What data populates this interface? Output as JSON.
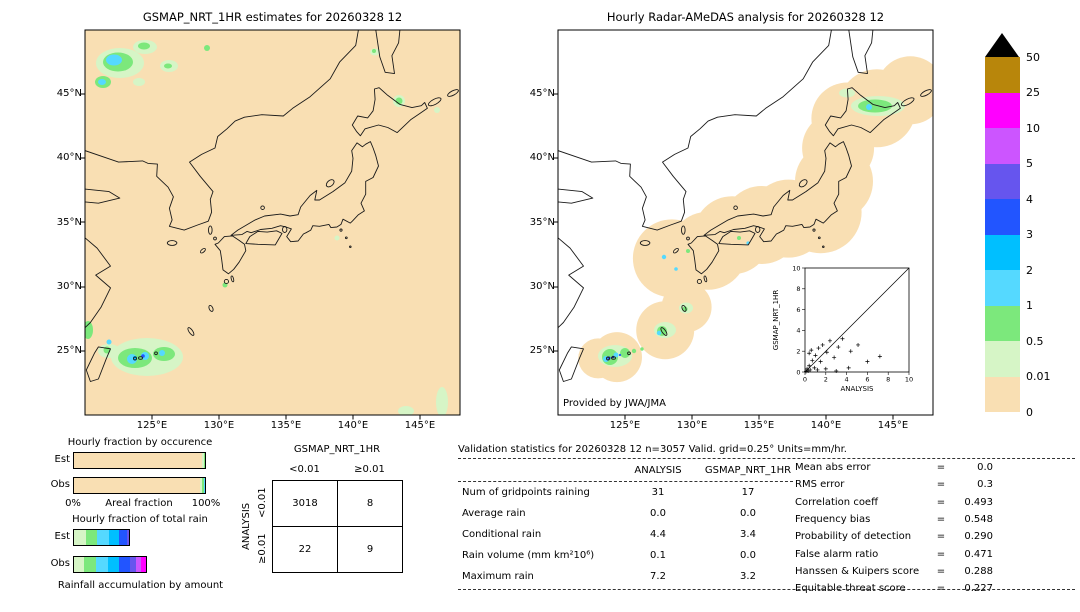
{
  "left_map": {
    "title": "GSMAP_NRT_1HR estimates for 20260328 12"
  },
  "right_map": {
    "title": "Hourly Radar-AMeDAS analysis for 20260328 12",
    "credit": "Provided by JWA/JMA"
  },
  "axes": {
    "lat_ticks": [
      "45°N",
      "40°N",
      "35°N",
      "30°N",
      "25°N"
    ],
    "lon_ticks": [
      "125°E",
      "130°E",
      "135°E",
      "140°E",
      "145°E"
    ]
  },
  "colorbar": {
    "units": "mm/hr",
    "labels": [
      "50",
      "25",
      "10",
      "5",
      "4",
      "3",
      "2",
      "1",
      "0.5",
      "0.01",
      "0"
    ],
    "colors_top_to_bottom": [
      "#b8860b",
      "#ff00ff",
      "#cc55ff",
      "#6655ee",
      "#2255ff",
      "#00bfff",
      "#55d9ff",
      "#7ce87c",
      "#d6f5c6",
      "#f9dfb3"
    ],
    "overflow_color": "#000000"
  },
  "inset": {
    "xlabel": "ANALYSIS",
    "ylabel": "GSMAP_NRT_1HR",
    "x_ticks": [
      "0",
      "2",
      "4",
      "6",
      "8",
      "10"
    ],
    "y_ticks": [
      "0",
      "2",
      "4",
      "6",
      "8",
      "10"
    ]
  },
  "occurrence_chart": {
    "title": "Hourly fraction by occurence",
    "row_labels": [
      "Est",
      "Obs"
    ],
    "x_min_label": "0%",
    "x_max_label": "100%",
    "xlabel": "Areal fraction"
  },
  "totalrain_chart": {
    "title": "Hourly fraction of total rain",
    "row_labels": [
      "Est",
      "Obs"
    ],
    "caption": "Rainfall accumulation by amount"
  },
  "contingency": {
    "col_group": "GSMAP_NRT_1HR",
    "row_group": "ANALYSIS",
    "col_labels": [
      "<0.01",
      "≥0.01"
    ],
    "row_labels": [
      "<0.01",
      "≥0.01"
    ],
    "values": [
      [
        "3018",
        "8"
      ],
      [
        "22",
        "9"
      ]
    ]
  },
  "stats": {
    "title": "Validation statistics for 20260328 12  n=3057 Valid. grid=0.25°  Units=mm/hr.",
    "col_headers": [
      "ANALYSIS",
      "GSMAP_NRT_1HR"
    ],
    "rows": [
      {
        "label": "Num of gridpoints raining",
        "a": "31",
        "g": "17"
      },
      {
        "label": "Average rain",
        "a": "0.0",
        "g": "0.0"
      },
      {
        "label": "Conditional rain",
        "a": "4.4",
        "g": "3.4"
      },
      {
        "label": "Rain volume (mm km²10⁶)",
        "a": "0.1",
        "g": "0.0"
      },
      {
        "label": "Maximum rain",
        "a": "7.2",
        "g": "3.2"
      }
    ],
    "side": [
      {
        "label": "Mean abs error",
        "value": "0.0"
      },
      {
        "label": "RMS error",
        "value": "0.3"
      },
      {
        "label": "Correlation coeff",
        "value": "0.493"
      },
      {
        "label": "Frequency bias",
        "value": "0.548"
      },
      {
        "label": "Probability of detection",
        "value": "0.290"
      },
      {
        "label": "False alarm ratio",
        "value": "0.471"
      },
      {
        "label": "Hanssen & Kuipers score",
        "value": "0.288"
      },
      {
        "label": "Equitable threat score",
        "value": "0.227"
      }
    ]
  },
  "chart_data": [
    {
      "type": "heatmap",
      "name": "gsmap-precip-map",
      "title": "GSMAP_NRT_1HR estimates for 20260328 12",
      "units": "mm/hr",
      "x_ticks": [
        "125°E",
        "130°E",
        "135°E",
        "140°E",
        "145°E"
      ],
      "y_ticks": [
        "45°N",
        "40°N",
        "35°N",
        "30°N",
        "25°N"
      ],
      "levels": [
        0,
        0.01,
        0.5,
        1,
        2,
        3,
        4,
        5,
        10,
        25,
        50
      ],
      "features": [
        {
          "area": "NE China, upper-left (45-49°N, 121-127°E)",
          "rate_mm_hr": "0.5-2"
        },
        {
          "area": "SW of Okinawa / Sakishima (23-26°N, 121-127°E)",
          "rate_mm_hr": "0.5-3"
        },
        {
          "area": "scattered light specks elsewhere",
          "rate_mm_hr": "0.01-1"
        }
      ]
    },
    {
      "type": "heatmap",
      "name": "radar-amedas-map",
      "title": "Hourly Radar-AMeDAS analysis for 20260328 12",
      "units": "mm/hr",
      "x_ticks": [
        "125°E",
        "130°E",
        "135°E",
        "140°E",
        "145°E"
      ],
      "y_ticks": [
        "45°N",
        "40°N",
        "35°N",
        "30°N",
        "25°N"
      ],
      "levels": [
        0,
        0.01,
        0.5,
        1,
        2,
        3,
        4,
        5,
        10,
        25,
        50
      ],
      "coverage": "values only inside radar-range circles along the Japanese archipelago",
      "features": [
        {
          "area": "eastern Hokkaido (43.5-44.5°N, 142-146°E)",
          "rate_mm_hr": "0.5-1"
        },
        {
          "area": "Sakishima islands (24-25°N, 123-126°E)",
          "rate_mm_hr": "1-5"
        },
        {
          "area": "Okinawa / Amami (26-28.5°N, 127-130°E)",
          "rate_mm_hr": "0.5-2"
        }
      ],
      "credit": "Provided by JWA/JMA"
    },
    {
      "type": "scatter",
      "name": "gsmap-vs-analysis",
      "xlabel": "ANALYSIS",
      "ylabel": "GSMAP_NRT_1HR",
      "xlim": [
        0,
        10
      ],
      "ylim": [
        0,
        10
      ],
      "reference_line": "y=x",
      "points": [
        [
          0.1,
          0.05
        ],
        [
          0.2,
          0.3
        ],
        [
          0.3,
          0.1
        ],
        [
          0.4,
          0.6
        ],
        [
          0.4,
          1.8
        ],
        [
          0.5,
          0.2
        ],
        [
          0.6,
          2.1
        ],
        [
          0.7,
          1.1
        ],
        [
          0.9,
          0.4
        ],
        [
          1.0,
          1.6
        ],
        [
          1.2,
          0.2
        ],
        [
          1.3,
          2.3
        ],
        [
          1.5,
          1.0
        ],
        [
          1.7,
          2.6
        ],
        [
          2.0,
          0.3
        ],
        [
          2.1,
          1.9
        ],
        [
          2.4,
          3.0
        ],
        [
          2.8,
          1.4
        ],
        [
          3.0,
          0.1
        ],
        [
          3.2,
          2.4
        ],
        [
          3.6,
          3.2
        ],
        [
          4.2,
          0.4
        ],
        [
          4.4,
          2.0
        ],
        [
          5.1,
          2.6
        ],
        [
          6.0,
          1.0
        ],
        [
          7.2,
          1.5
        ]
      ]
    },
    {
      "type": "bar",
      "name": "hourly-fraction-by-occurrence",
      "title": "Hourly fraction by occurence",
      "orientation": "horizontal-stacked",
      "categories": [
        "Est",
        "Obs"
      ],
      "xlabel": "Areal fraction",
      "x_range": [
        "0%",
        "100%"
      ],
      "series": [
        {
          "name": "Est",
          "segments": [
            {
              "c": "#f9dfb3",
              "w": 97.7
            },
            {
              "c": "#d6f5c6",
              "w": 1.3
            },
            {
              "c": "#7ce87c",
              "w": 1.0
            }
          ]
        },
        {
          "name": "Obs",
          "segments": [
            {
              "c": "#f9dfb3",
              "w": 96.4
            },
            {
              "c": "#d6f5c6",
              "w": 1.6
            },
            {
              "c": "#7ce87c",
              "w": 1.1
            },
            {
              "c": "#55d9ff",
              "w": 0.9
            }
          ]
        }
      ]
    },
    {
      "type": "bar",
      "name": "hourly-fraction-of-total-rain",
      "title": "Hourly fraction of total rain",
      "orientation": "horizontal-stacked",
      "categories": [
        "Est",
        "Obs"
      ],
      "caption": "Rainfall accumulation by amount",
      "series": [
        {
          "name": "Est",
          "segments": [
            {
              "c": "#d6f5c6",
              "w": 9
            },
            {
              "c": "#7ce87c",
              "w": 9
            },
            {
              "c": "#55d9ff",
              "w": 9
            },
            {
              "c": "#00bfff",
              "w": 8
            },
            {
              "c": "#2255ff",
              "w": 6
            },
            {
              "c": "#6655ee",
              "w": 2
            }
          ]
        },
        {
          "name": "Obs",
          "segments": [
            {
              "c": "#d6f5c6",
              "w": 8
            },
            {
              "c": "#7ce87c",
              "w": 9
            },
            {
              "c": "#55d9ff",
              "w": 9
            },
            {
              "c": "#00bfff",
              "w": 9
            },
            {
              "c": "#2255ff",
              "w": 8
            },
            {
              "c": "#6655ee",
              "w": 5
            },
            {
              "c": "#cc55ff",
              "w": 4
            },
            {
              "c": "#ff00ff",
              "w": 4
            }
          ]
        }
      ]
    },
    {
      "type": "table",
      "name": "contingency-table",
      "col_group": "GSMAP_NRT_1HR",
      "row_group": "ANALYSIS",
      "col_labels": [
        "<0.01",
        "≥0.01"
      ],
      "row_labels": [
        "<0.01",
        "≥0.01"
      ],
      "values": [
        [
          3018,
          8
        ],
        [
          22,
          9
        ]
      ]
    },
    {
      "type": "table",
      "name": "validation-statistics",
      "n": 3057,
      "grid": "0.25°",
      "units": "mm/hr",
      "columns": [
        "ANALYSIS",
        "GSMAP_NRT_1HR"
      ],
      "rows": [
        [
          "Num of gridpoints raining",
          31,
          17
        ],
        [
          "Average rain",
          0.0,
          0.0
        ],
        [
          "Conditional rain",
          4.4,
          3.4
        ],
        [
          "Rain volume (mm km²10⁶)",
          0.1,
          0.0
        ],
        [
          "Maximum rain",
          7.2,
          3.2
        ]
      ],
      "scores": {
        "Mean abs error": 0.0,
        "RMS error": 0.3,
        "Correlation coeff": 0.493,
        "Frequency bias": 0.548,
        "Probability of detection": 0.29,
        "False alarm ratio": 0.471,
        "Hanssen & Kuipers score": 0.288,
        "Equitable threat score": 0.227
      }
    }
  ]
}
